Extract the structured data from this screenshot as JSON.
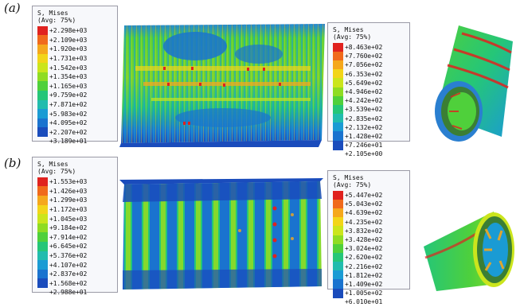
{
  "panels": [
    {
      "label": "(a)",
      "legend_left": {
        "title1": "S, Mises",
        "title2": "(Avg: 75%)",
        "values": [
          "+2.298e+03",
          "+2.109e+03",
          "+1.920e+03",
          "+1.731e+03",
          "+1.542e+03",
          "+1.354e+03",
          "+1.165e+03",
          "+9.759e+02",
          "+7.871e+02",
          "+5.983e+02",
          "+4.095e+02",
          "+2.207e+02",
          "+3.189e+01"
        ]
      },
      "legend_right": {
        "title1": "S, Mises",
        "title2": "(Avg: 75%)",
        "values": [
          "+8.463e+02",
          "+7.760e+02",
          "+7.056e+02",
          "+6.353e+02",
          "+5.649e+02",
          "+4.946e+02",
          "+4.242e+02",
          "+3.539e+02",
          "+2.835e+02",
          "+2.132e+02",
          "+1.428e+02",
          "+7.246e+01",
          "+2.105e+00"
        ]
      }
    },
    {
      "label": "(b)",
      "legend_left": {
        "title1": "S, Mises",
        "title2": "(Avg: 75%)",
        "values": [
          "+1.553e+03",
          "+1.426e+03",
          "+1.299e+03",
          "+1.172e+03",
          "+1.045e+03",
          "+9.184e+02",
          "+7.914e+02",
          "+6.645e+02",
          "+5.376e+02",
          "+4.107e+02",
          "+2.837e+02",
          "+1.568e+02",
          "+2.988e+01"
        ]
      },
      "legend_right": {
        "title1": "S, Mises",
        "title2": "(Avg: 75%)",
        "values": [
          "+5.447e+02",
          "+5.043e+02",
          "+4.639e+02",
          "+4.235e+02",
          "+3.832e+02",
          "+3.428e+02",
          "+3.024e+02",
          "+2.620e+02",
          "+2.216e+02",
          "+1.812e+02",
          "+1.409e+02",
          "+1.005e+02",
          "+6.010e+01"
        ]
      }
    }
  ],
  "colormap": [
    "#e0221f",
    "#f06a1c",
    "#f5a81d",
    "#f2d51a",
    "#cbe51d",
    "#8fdc23",
    "#4fd03b",
    "#25c678",
    "#21bcae",
    "#1a9bd4",
    "#1a73cf",
    "#1a4cbc",
    "#1d2ea8"
  ]
}
